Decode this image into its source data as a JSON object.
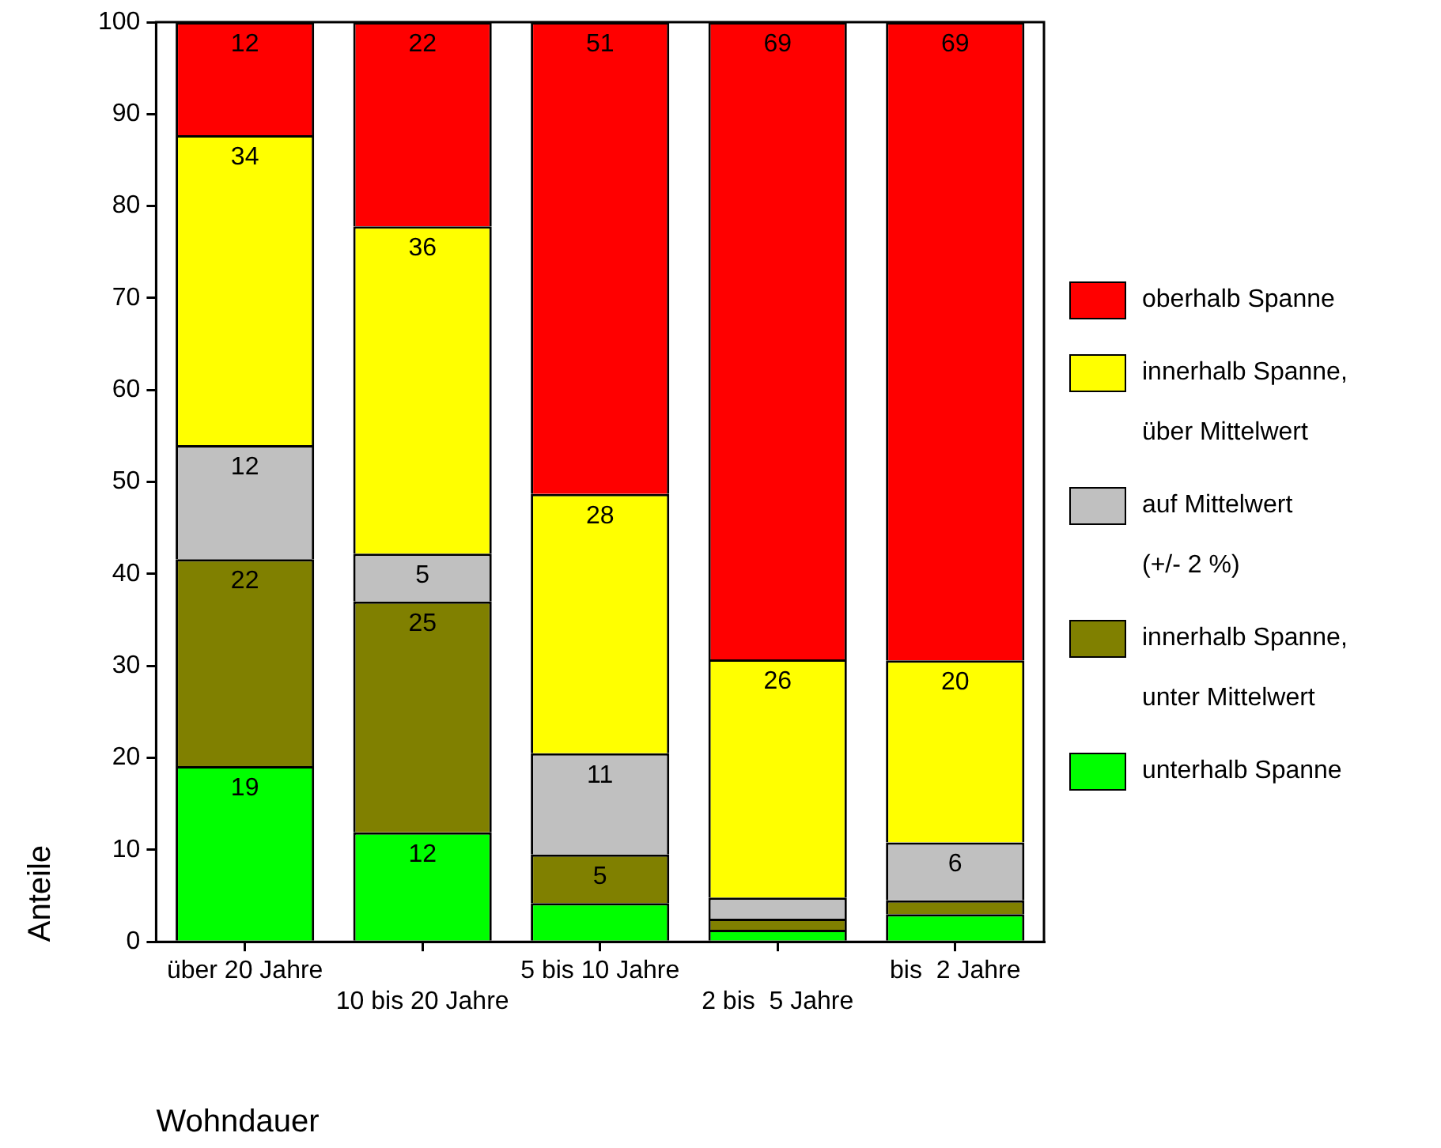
{
  "chart_data": {
    "type": "bar",
    "stacked": true,
    "xlabel": "Wohndauer",
    "ylabel": "Anteile",
    "categories": [
      "über 20 Jahre",
      "10 bis 20 Jahre",
      "5 bis 10 Jahre",
      "2 bis  5 Jahre",
      "bis  2 Jahre"
    ],
    "ylim": [
      0,
      100
    ],
    "yticks": [
      0,
      10,
      20,
      30,
      40,
      50,
      60,
      70,
      80,
      90,
      100
    ],
    "grid": false,
    "legend": "right",
    "series": [
      {
        "name": "unterhalb Spanne",
        "color": "#00ff00",
        "values": [
          19.1,
          11.9,
          4.2,
          1.3,
          3.0
        ],
        "value_labels": [
          "19",
          "12",
          null,
          null,
          null
        ]
      },
      {
        "name": "innerhalb Spanne,\nunter Mittelwert",
        "color": "#808000",
        "values": [
          22.5,
          25.1,
          5.3,
          1.2,
          1.5
        ],
        "value_labels": [
          "22",
          "25",
          "5",
          null,
          null
        ]
      },
      {
        "name": "auf Mittelwert\n(+/- 2 %)",
        "color": "#c0c0c0",
        "values": [
          12.4,
          5.2,
          11.0,
          2.3,
          6.3
        ],
        "value_labels": [
          "12",
          "5",
          "11",
          null,
          "6"
        ]
      },
      {
        "name": "innerhalb Spanne,\nüber Mittelwert",
        "color": "#ffff00",
        "values": [
          33.7,
          35.6,
          28.2,
          25.9,
          19.8
        ],
        "value_labels": [
          "34",
          "36",
          "28",
          "26",
          "20"
        ]
      },
      {
        "name": "oberhalb Spanne",
        "color": "#ff0000",
        "values": [
          12.3,
          22.2,
          51.3,
          69.3,
          69.4
        ],
        "value_labels": [
          "12",
          "22",
          "51",
          "69",
          "69"
        ]
      }
    ]
  }
}
